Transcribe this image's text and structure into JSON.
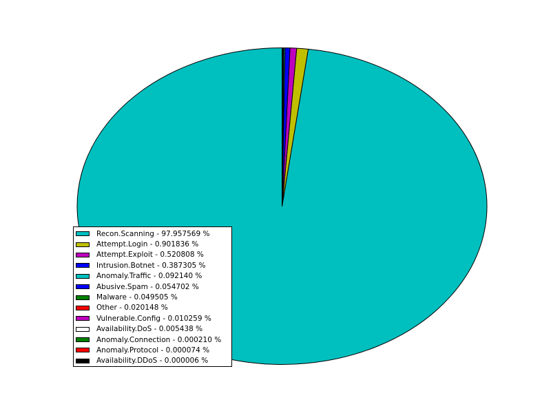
{
  "chart_data": {
    "type": "pie",
    "title": "",
    "legend_position": "lower-left",
    "start_angle_deg": 90,
    "direction": "counterclockwise",
    "slices": [
      {
        "label": "Recon.Scanning - 97.957569 %",
        "name": "Recon.Scanning",
        "value": 97.957569,
        "color": "#00bfbf"
      },
      {
        "label": "Attempt.Login - 0.901836 %",
        "name": "Attempt.Login",
        "value": 0.901836,
        "color": "#bfbf00"
      },
      {
        "label": "Attempt.Exploit - 0.520808 %",
        "name": "Attempt.Exploit",
        "value": 0.520808,
        "color": "#bf00bf"
      },
      {
        "label": "Intrusion.Botnet - 0.387305 %",
        "name": "Intrusion.Botnet",
        "value": 0.387305,
        "color": "#0000ff"
      },
      {
        "label": "Anomaly.Traffic - 0.092140 %",
        "name": "Anomaly.Traffic",
        "value": 0.09214,
        "color": "#00bfbf"
      },
      {
        "label": "Abusive.Spam - 0.054702 %",
        "name": "Abusive.Spam",
        "value": 0.054702,
        "color": "#0000ff"
      },
      {
        "label": "Malware - 0.049505 %",
        "name": "Malware",
        "value": 0.049505,
        "color": "#008000"
      },
      {
        "label": "Other - 0.020148 %",
        "name": "Other",
        "value": 0.020148,
        "color": "#ff0000"
      },
      {
        "label": "Vulnerable.Config - 0.010259 %",
        "name": "Vulnerable.Config",
        "value": 0.010259,
        "color": "#bf00bf"
      },
      {
        "label": "Availability.DoS - 0.005438 %",
        "name": "Availability.DoS",
        "value": 0.005438,
        "color": "#ffffff"
      },
      {
        "label": "Anomaly.Connection - 0.000210 %",
        "name": "Anomaly.Connection",
        "value": 0.00021,
        "color": "#008000"
      },
      {
        "label": "Anomaly.Protocol - 0.000074 %",
        "name": "Anomaly.Protocol",
        "value": 7.4e-05,
        "color": "#ff0000"
      },
      {
        "label": "Availability.DDoS - 0.000006 %",
        "name": "Availability.DDoS",
        "value": 6e-06,
        "color": "#000000"
      }
    ]
  }
}
